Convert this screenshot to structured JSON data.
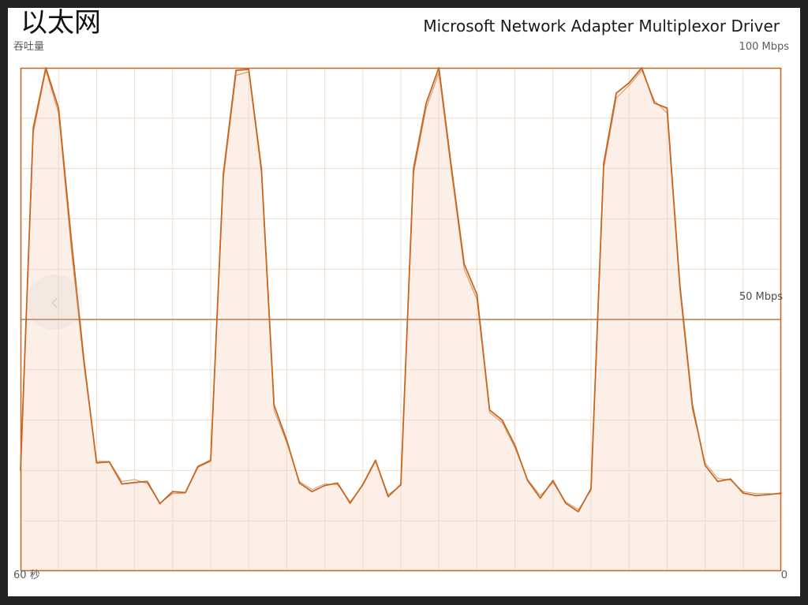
{
  "window": {
    "title": "以太网",
    "adapter_name": "Microsoft Network Adapter Multiplexor Driver"
  },
  "graph": {
    "throughput_label": "吞吐量",
    "max_label": "100 Mbps",
    "mid_label": "50 Mbps",
    "time_left_label": "60 秒",
    "time_right_label": "0"
  },
  "icons": {
    "nav_arrow": "chevron-left-icon"
  },
  "colors": {
    "line": "#c8661f",
    "fill": "#fcefe7",
    "grid": "#efd9cc",
    "midline": "#c99a78",
    "border": "#c8661f"
  },
  "chart_data": {
    "type": "area",
    "ylabel": "吞吐量",
    "ylim": [
      0,
      100
    ],
    "xlim": [
      60,
      0
    ],
    "x_unit": "秒",
    "y_unit": "Mbps",
    "series": [
      {
        "x": [
          60,
          59,
          58,
          57,
          56,
          55,
          54,
          53,
          52,
          51,
          50,
          49,
          48,
          47,
          46,
          45,
          44,
          43,
          42,
          41,
          40,
          39,
          38,
          37,
          36,
          35,
          34,
          33,
          32,
          31,
          30,
          29,
          28,
          27,
          26,
          25,
          24,
          23,
          22,
          21,
          20,
          19,
          18,
          17,
          16,
          15,
          14,
          13,
          12,
          11,
          10,
          9,
          8,
          7,
          6,
          5,
          4,
          3,
          2,
          1,
          0
        ],
        "values": [
          20,
          88,
          100,
          92,
          66,
          42,
          21.5,
          21.7,
          17.3,
          17.6,
          17.8,
          13.4,
          15.8,
          15.6,
          20.8,
          22,
          79,
          99.5,
          99.7,
          80,
          33,
          26,
          17.5,
          15.8,
          17,
          17.5,
          13.5,
          17.2,
          22,
          14.8,
          17.2,
          80,
          93,
          100,
          80,
          61,
          55,
          32,
          30,
          25,
          18,
          14.5,
          18,
          13.5,
          11.8,
          16.4,
          81,
          95,
          97,
          100,
          93,
          92,
          57,
          33,
          21,
          17.8,
          18.3,
          15.5,
          15,
          15.2,
          15.5
        ]
      },
      {
        "x": [
          60,
          59,
          58,
          57,
          56,
          55,
          54,
          53,
          52,
          51,
          50,
          49,
          48,
          47,
          46,
          45,
          44,
          43,
          42,
          41,
          40,
          39,
          38,
          37,
          36,
          35,
          34,
          33,
          32,
          31,
          30,
          29,
          28,
          27,
          26,
          25,
          24,
          23,
          22,
          21,
          20,
          19,
          18,
          17,
          16,
          15,
          14,
          13,
          12,
          11,
          10,
          9,
          8,
          7,
          6,
          5,
          4,
          3,
          2,
          1,
          0
        ],
        "values": [
          20,
          87,
          99.5,
          91,
          64,
          41,
          21.8,
          21.8,
          17.8,
          18.2,
          17.4,
          13.5,
          15.4,
          15.5,
          20.6,
          21.8,
          78,
          98.5,
          99.2,
          79,
          32,
          25.5,
          17.8,
          16.2,
          17.3,
          17.2,
          13.8,
          17,
          21.8,
          15.2,
          17,
          79,
          92,
          99,
          79,
          60,
          54,
          31.5,
          29.5,
          24.5,
          18.2,
          15,
          17.6,
          13.8,
          12.2,
          16,
          80,
          94,
          96.5,
          99.5,
          93.5,
          91,
          56,
          32,
          21.5,
          18.4,
          18.1,
          15.8,
          15.4,
          15.4,
          15.3
        ]
      }
    ]
  }
}
